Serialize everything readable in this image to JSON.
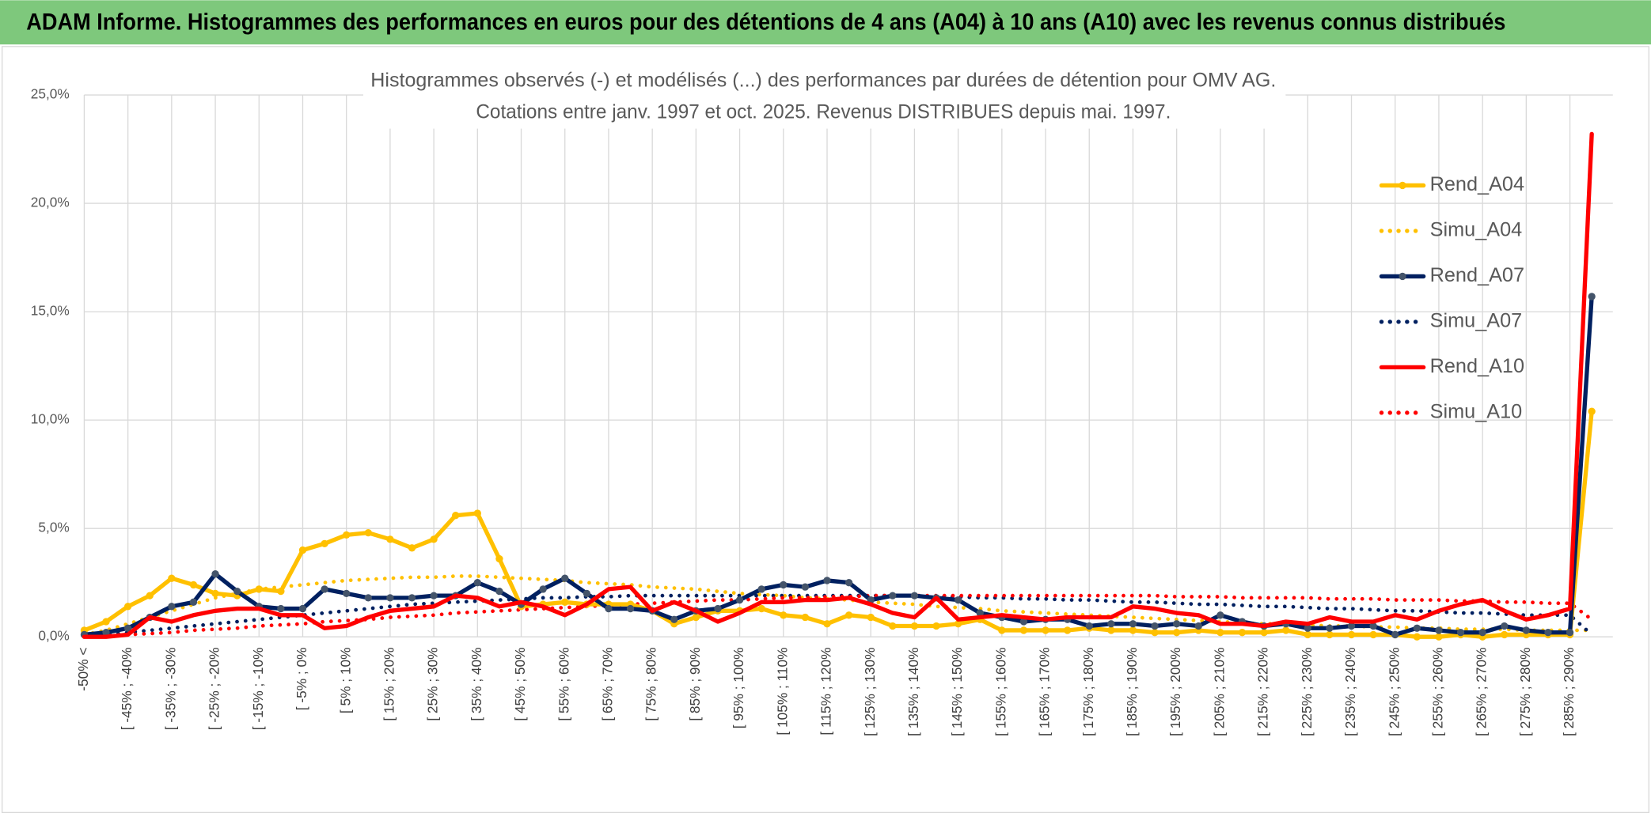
{
  "header": {
    "title": "ADAM Informe. Histogrammes des performances en euros pour des détentions de 4 ans (A04) à 10 ans (A10) avec les revenus connus distribués"
  },
  "chart_data": {
    "type": "line",
    "title": "Histogrammes observés (-) et modélisés (...) des performances par durées de détention pour OMV AG.",
    "subtitle": "Cotations entre janv. 1997 et oct. 2025. Revenus DISTRIBUES depuis mai. 1997.",
    "categories": [
      "-50% <",
      null,
      "[ -45% ; -40%",
      null,
      "[ -35% ; -30%",
      null,
      "[ -25% ; -20%",
      null,
      "[ -15% ; -10%",
      null,
      "[ -5% ; 0%",
      null,
      "[ 5% ; 10%",
      null,
      "[ 15% ; 20%",
      null,
      "[ 25% ; 30%",
      null,
      "[ 35% ; 40%",
      null,
      "[ 45% ; 50%",
      null,
      "[ 55% ; 60%",
      null,
      "[ 65% ; 70%",
      null,
      "[ 75% ; 80%",
      null,
      "[ 85% ; 90%",
      null,
      "[ 95% ; 100%",
      null,
      "[ 105% ; 110%",
      null,
      "[ 115% ; 120%",
      null,
      "[ 125% ; 130%",
      null,
      "[ 135% ; 140%",
      null,
      "[ 145% ; 150%",
      null,
      "[ 155% ; 160%",
      null,
      "[ 165% ; 170%",
      null,
      "[ 175% ; 180%",
      null,
      "[ 185% ; 190%",
      null,
      "[ 195% ; 200%",
      null,
      "[ 205% ; 210%",
      null,
      "[ 215% ; 220%",
      null,
      "[ 225% ; 230%",
      null,
      "[ 235% ; 240%",
      null,
      "[ 245% ; 250%",
      null,
      "[ 255% ; 260%",
      null,
      "[ 265% ; 270%",
      null,
      "[ 275% ; 280%",
      null,
      "[ 285% ; 290%",
      null
    ],
    "series": [
      {
        "name": "Rend_A04",
        "color": "#ffc000",
        "style": "solid",
        "markers": true,
        "values": [
          0.3,
          0.7,
          1.4,
          1.9,
          2.7,
          2.4,
          2.0,
          1.9,
          2.2,
          2.1,
          4.0,
          4.3,
          4.7,
          4.8,
          4.5,
          4.1,
          4.5,
          5.6,
          5.7,
          3.6,
          1.4,
          1.5,
          1.6,
          1.5,
          1.5,
          1.5,
          1.2,
          0.6,
          0.9,
          1.2,
          1.2,
          1.3,
          1.0,
          0.9,
          0.6,
          1.0,
          0.9,
          0.5,
          0.5,
          0.5,
          0.6,
          0.8,
          0.3,
          0.3,
          0.3,
          0.3,
          0.4,
          0.3,
          0.3,
          0.2,
          0.2,
          0.3,
          0.2,
          0.2,
          0.2,
          0.3,
          0.1,
          0.1,
          0.1,
          0.1,
          0.1,
          0.0,
          0.0,
          0.1,
          0.0,
          0.1,
          0.1,
          0.1,
          0.1,
          10.4
        ]
      },
      {
        "name": "Simu_A04",
        "color": "#ffc000",
        "style": "dotted",
        "markers": false,
        "values": [
          0.1,
          0.3,
          0.6,
          0.9,
          1.2,
          1.5,
          1.8,
          2.0,
          2.2,
          2.3,
          2.4,
          2.5,
          2.6,
          2.65,
          2.7,
          2.75,
          2.75,
          2.8,
          2.8,
          2.75,
          2.7,
          2.65,
          2.6,
          2.5,
          2.45,
          2.4,
          2.3,
          2.25,
          2.2,
          2.1,
          2.0,
          1.95,
          1.9,
          1.8,
          1.75,
          1.7,
          1.6,
          1.55,
          1.5,
          1.4,
          1.35,
          1.3,
          1.2,
          1.15,
          1.1,
          1.05,
          1.0,
          0.95,
          0.9,
          0.85,
          0.8,
          0.75,
          0.7,
          0.65,
          0.6,
          0.6,
          0.55,
          0.5,
          0.5,
          0.45,
          0.45,
          0.4,
          0.4,
          0.35,
          0.35,
          0.35,
          0.3,
          0.3,
          0.3,
          0.3
        ]
      },
      {
        "name": "Rend_A07",
        "color": "#002060",
        "style": "solid",
        "markers": true,
        "values": [
          0.1,
          0.2,
          0.4,
          0.9,
          1.4,
          1.6,
          2.9,
          2.1,
          1.4,
          1.3,
          1.3,
          2.2,
          2.0,
          1.8,
          1.8,
          1.8,
          1.9,
          1.9,
          2.5,
          2.1,
          1.5,
          2.2,
          2.7,
          2.0,
          1.3,
          1.3,
          1.2,
          0.8,
          1.2,
          1.3,
          1.7,
          2.2,
          2.4,
          2.3,
          2.6,
          2.5,
          1.7,
          1.9,
          1.9,
          1.8,
          1.7,
          1.1,
          0.9,
          0.7,
          0.8,
          0.8,
          0.5,
          0.6,
          0.6,
          0.5,
          0.6,
          0.5,
          1.0,
          0.7,
          0.5,
          0.6,
          0.4,
          0.4,
          0.5,
          0.5,
          0.1,
          0.4,
          0.3,
          0.2,
          0.2,
          0.5,
          0.3,
          0.2,
          0.2,
          15.7
        ]
      },
      {
        "name": "Simu_A07",
        "color": "#002060",
        "style": "dotted",
        "markers": false,
        "values": [
          0.0,
          0.1,
          0.2,
          0.3,
          0.4,
          0.5,
          0.6,
          0.7,
          0.8,
          0.9,
          1.0,
          1.1,
          1.2,
          1.3,
          1.4,
          1.5,
          1.55,
          1.6,
          1.65,
          1.7,
          1.75,
          1.8,
          1.8,
          1.85,
          1.85,
          1.9,
          1.9,
          1.9,
          1.9,
          1.9,
          1.9,
          1.9,
          1.9,
          1.9,
          1.9,
          1.9,
          1.9,
          1.9,
          1.9,
          1.85,
          1.85,
          1.8,
          1.8,
          1.75,
          1.75,
          1.7,
          1.7,
          1.65,
          1.6,
          1.6,
          1.55,
          1.5,
          1.5,
          1.45,
          1.4,
          1.4,
          1.35,
          1.3,
          1.3,
          1.25,
          1.2,
          1.2,
          1.15,
          1.1,
          1.1,
          1.05,
          1.0,
          1.0,
          1.0,
          0.1
        ]
      },
      {
        "name": "Rend_A10",
        "color": "#ff0000",
        "style": "solid",
        "markers": false,
        "values": [
          0.0,
          0.0,
          0.1,
          0.9,
          0.7,
          1.0,
          1.2,
          1.3,
          1.3,
          1.0,
          1.0,
          0.4,
          0.5,
          0.9,
          1.2,
          1.3,
          1.4,
          1.9,
          1.8,
          1.4,
          1.6,
          1.4,
          1.0,
          1.5,
          2.2,
          2.3,
          1.2,
          1.6,
          1.2,
          0.7,
          1.1,
          1.6,
          1.6,
          1.7,
          1.7,
          1.8,
          1.5,
          1.1,
          0.9,
          1.8,
          0.8,
          0.9,
          1.0,
          0.9,
          0.8,
          0.9,
          0.9,
          0.9,
          1.4,
          1.3,
          1.1,
          1.0,
          0.6,
          0.6,
          0.5,
          0.7,
          0.6,
          0.9,
          0.7,
          0.7,
          1.0,
          0.8,
          1.2,
          1.5,
          1.7,
          1.2,
          0.8,
          1.0,
          1.3,
          23.2
        ]
      },
      {
        "name": "Simu_A10",
        "color": "#ff0000",
        "style": "dotted",
        "markers": false,
        "values": [
          0.0,
          0.05,
          0.1,
          0.15,
          0.2,
          0.3,
          0.35,
          0.4,
          0.5,
          0.55,
          0.6,
          0.7,
          0.75,
          0.8,
          0.9,
          0.95,
          1.0,
          1.1,
          1.15,
          1.2,
          1.25,
          1.3,
          1.35,
          1.4,
          1.45,
          1.5,
          1.55,
          1.6,
          1.65,
          1.7,
          1.7,
          1.75,
          1.8,
          1.8,
          1.85,
          1.85,
          1.9,
          1.9,
          1.9,
          1.9,
          1.9,
          1.9,
          1.9,
          1.9,
          1.9,
          1.9,
          1.9,
          1.9,
          1.9,
          1.9,
          1.85,
          1.85,
          1.85,
          1.8,
          1.8,
          1.8,
          1.8,
          1.75,
          1.75,
          1.75,
          1.7,
          1.7,
          1.7,
          1.65,
          1.65,
          1.6,
          1.6,
          1.55,
          1.55,
          0.8
        ]
      }
    ],
    "ylim": [
      0,
      25
    ],
    "yticks": [
      {
        "value": 0,
        "label": "0,0%"
      },
      {
        "value": 5,
        "label": "5,0%"
      },
      {
        "value": 10,
        "label": "10,0%"
      },
      {
        "value": 15,
        "label": "15,0%"
      },
      {
        "value": 20,
        "label": "20,0%"
      },
      {
        "value": 25,
        "label": "25,0%"
      }
    ],
    "grid": true,
    "legend": "right"
  }
}
